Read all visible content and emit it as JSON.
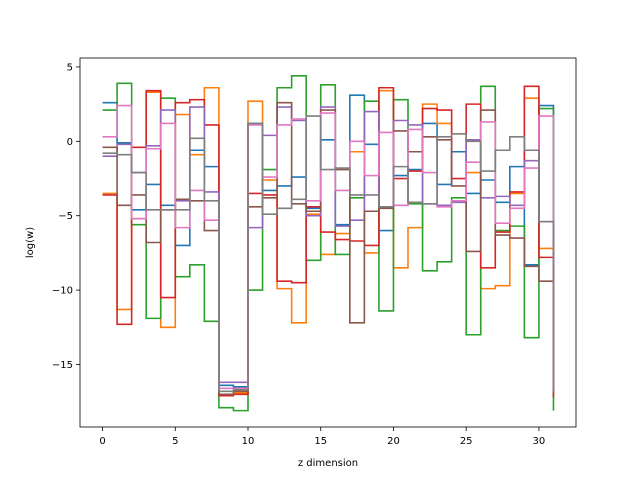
{
  "chart_data": {
    "type": "line",
    "drawstyle": "steps-post",
    "xlabel": "z dimension",
    "ylabel": "log(w)",
    "xlim": [
      -1.55,
      32.55
    ],
    "ylim": [
      -19.2,
      5.6
    ],
    "xticks": [
      0,
      5,
      10,
      15,
      20,
      25,
      30
    ],
    "yticks": [
      -15,
      -10,
      -5,
      0,
      5
    ],
    "grid": false,
    "x": [
      0,
      1,
      2,
      3,
      4,
      5,
      6,
      7,
      8,
      9,
      10,
      11,
      12,
      13,
      14,
      15,
      16,
      17,
      18,
      19,
      20,
      21,
      22,
      23,
      24,
      25,
      26,
      27,
      28,
      29,
      30,
      31
    ],
    "series": [
      {
        "color": "#1f77b4",
        "values": [
          2.6,
          -0.1,
          -4.6,
          -2.9,
          -4.3,
          -7.0,
          -0.6,
          -1.7,
          -16.4,
          -16.5,
          1.2,
          -3.3,
          -3.0,
          -2.4,
          -4.5,
          0.1,
          -5.6,
          3.1,
          -0.2,
          -6.0,
          -2.3,
          -1.9,
          1.2,
          -2.9,
          -0.7,
          -3.5,
          -2.6,
          -4.1,
          -1.7,
          -8.3,
          2.4,
          -16.5
        ]
      },
      {
        "color": "#ff7f0e",
        "values": [
          -3.5,
          -11.3,
          -5.2,
          3.3,
          -12.5,
          1.8,
          -0.9,
          3.6,
          -17.0,
          -16.9,
          2.7,
          -2.6,
          -9.9,
          -12.2,
          -4.9,
          -7.6,
          -6.2,
          -0.7,
          -7.5,
          3.4,
          -8.5,
          -5.8,
          2.5,
          1.2,
          0.5,
          -2.1,
          -9.9,
          -9.7,
          -3.5,
          2.9,
          -7.2,
          -17.0
        ]
      },
      {
        "color": "#2ca02c",
        "values": [
          2.1,
          3.9,
          -5.6,
          -11.9,
          2.9,
          -9.1,
          -8.3,
          -12.1,
          -17.9,
          -18.1,
          -10.0,
          -1.9,
          3.6,
          4.4,
          -8.0,
          3.8,
          -7.6,
          -3.8,
          2.7,
          -11.4,
          2.8,
          -4.2,
          -8.7,
          -8.1,
          -3.8,
          -13.0,
          3.7,
          -6.0,
          -5.7,
          -13.2,
          2.2,
          -18.1
        ]
      },
      {
        "color": "#d62728",
        "values": [
          -3.6,
          -12.3,
          -0.4,
          3.4,
          -10.5,
          2.6,
          2.8,
          1.1,
          -17.1,
          -17.0,
          -3.5,
          -3.6,
          -9.4,
          -9.5,
          -4.4,
          -6.1,
          -6.6,
          -6.7,
          -7.0,
          3.6,
          -2.5,
          -2.0,
          2.2,
          2.1,
          -2.5,
          2.5,
          -8.5,
          -6.1,
          -3.4,
          3.7,
          -7.8,
          -17.2
        ]
      },
      {
        "color": "#9467bd",
        "values": [
          -1.0,
          -0.2,
          -2.1,
          -0.3,
          2.1,
          -4.0,
          2.3,
          -3.4,
          -16.2,
          -16.2,
          -5.8,
          0.4,
          2.3,
          1.4,
          -5.0,
          2.3,
          -5.7,
          -5.3,
          2.0,
          -4.4,
          1.4,
          1.1,
          -4.2,
          -4.3,
          -4.1,
          0.1,
          -3.8,
          -3.7,
          -4.3,
          -1.3,
          -5.4,
          -16.3
        ]
      },
      {
        "color": "#8c564b",
        "values": [
          -0.4,
          -4.3,
          -3.6,
          -6.8,
          -4.6,
          -3.9,
          -4.0,
          -6.0,
          -17.0,
          -16.8,
          -4.4,
          -3.8,
          2.6,
          -4.2,
          -4.7,
          2.1,
          -1.9,
          -12.2,
          -4.7,
          -4.5,
          0.7,
          -0.7,
          0.3,
          0.1,
          -3.0,
          -7.4,
          2.1,
          -6.3,
          -6.5,
          -8.4,
          -9.4,
          -16.8
        ]
      },
      {
        "color": "#e377c2",
        "values": [
          0.3,
          2.4,
          -5.2,
          -0.5,
          1.2,
          -5.8,
          -3.3,
          -5.3,
          -16.6,
          -16.6,
          1.1,
          -2.4,
          1.1,
          1.5,
          -4.0,
          1.9,
          -3.3,
          0.0,
          -2.3,
          0.6,
          -4.3,
          0.8,
          -2.1,
          -4.4,
          -4.0,
          -1.4,
          1.3,
          -5.5,
          -4.5,
          -1.8,
          1.7,
          -16.6
        ]
      },
      {
        "color": "#7f7f7f",
        "values": [
          -0.8,
          -0.9,
          -2.1,
          -4.6,
          -4.6,
          -4.6,
          0.2,
          -4.0,
          -16.8,
          -16.7,
          1.2,
          -4.9,
          -4.5,
          -3.9,
          1.7,
          -1.9,
          -1.8,
          -3.6,
          -3.6,
          -4.4,
          -1.7,
          -4.1,
          -4.2,
          0.3,
          0.5,
          0.0,
          -2.0,
          -0.6,
          0.3,
          -0.6,
          -5.4,
          -16.9
        ]
      }
    ]
  }
}
